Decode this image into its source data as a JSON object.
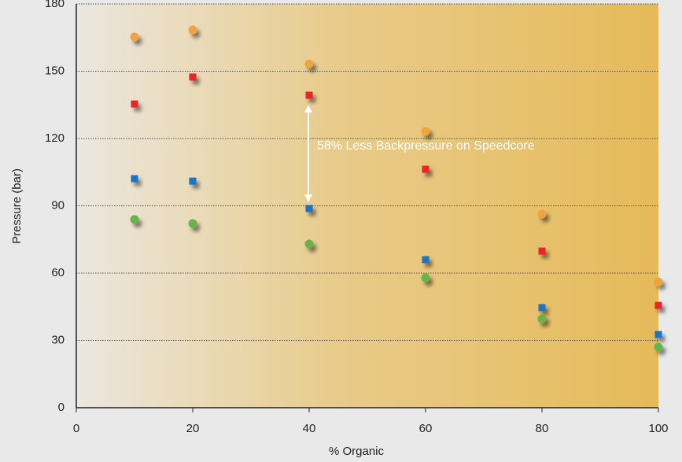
{
  "chart_data": {
    "type": "scatter",
    "x_label": "% Organic",
    "y_label": "Pressure (bar)",
    "annotation": "58% Less Backpressure on Speedcore",
    "xlim": [
      0,
      100
    ],
    "xticks": [
      0,
      20,
      40,
      60,
      80,
      100
    ],
    "ylim": [
      0,
      180
    ],
    "yticks": [
      0,
      30,
      60,
      90,
      120,
      150,
      180
    ],
    "grid": true,
    "series": [
      {
        "color": "#f0a43c",
        "marker": "circle",
        "x": [
          10,
          20,
          40,
          60,
          80,
          100
        ],
        "values": [
          165.3,
          168.4,
          153.3,
          123.2,
          86.3,
          56.1
        ]
      },
      {
        "color": "#e8262a",
        "marker": "square",
        "x": [
          10,
          20,
          40,
          60,
          80,
          100
        ],
        "values": [
          135.4,
          147.4,
          139.3,
          106.3,
          69.8,
          45.6
        ]
      },
      {
        "color": "#1f74c4",
        "marker": "square",
        "x": [
          10,
          20,
          40,
          60,
          80,
          100
        ],
        "values": [
          102.1,
          101,
          88.8,
          66,
          44.6,
          32.6
        ]
      },
      {
        "color": "#66b548",
        "marker": "circle",
        "x": [
          10,
          20,
          40,
          60,
          80,
          100
        ],
        "values": [
          83.9,
          82.1,
          73,
          57.9,
          39.6,
          27
        ]
      }
    ]
  }
}
